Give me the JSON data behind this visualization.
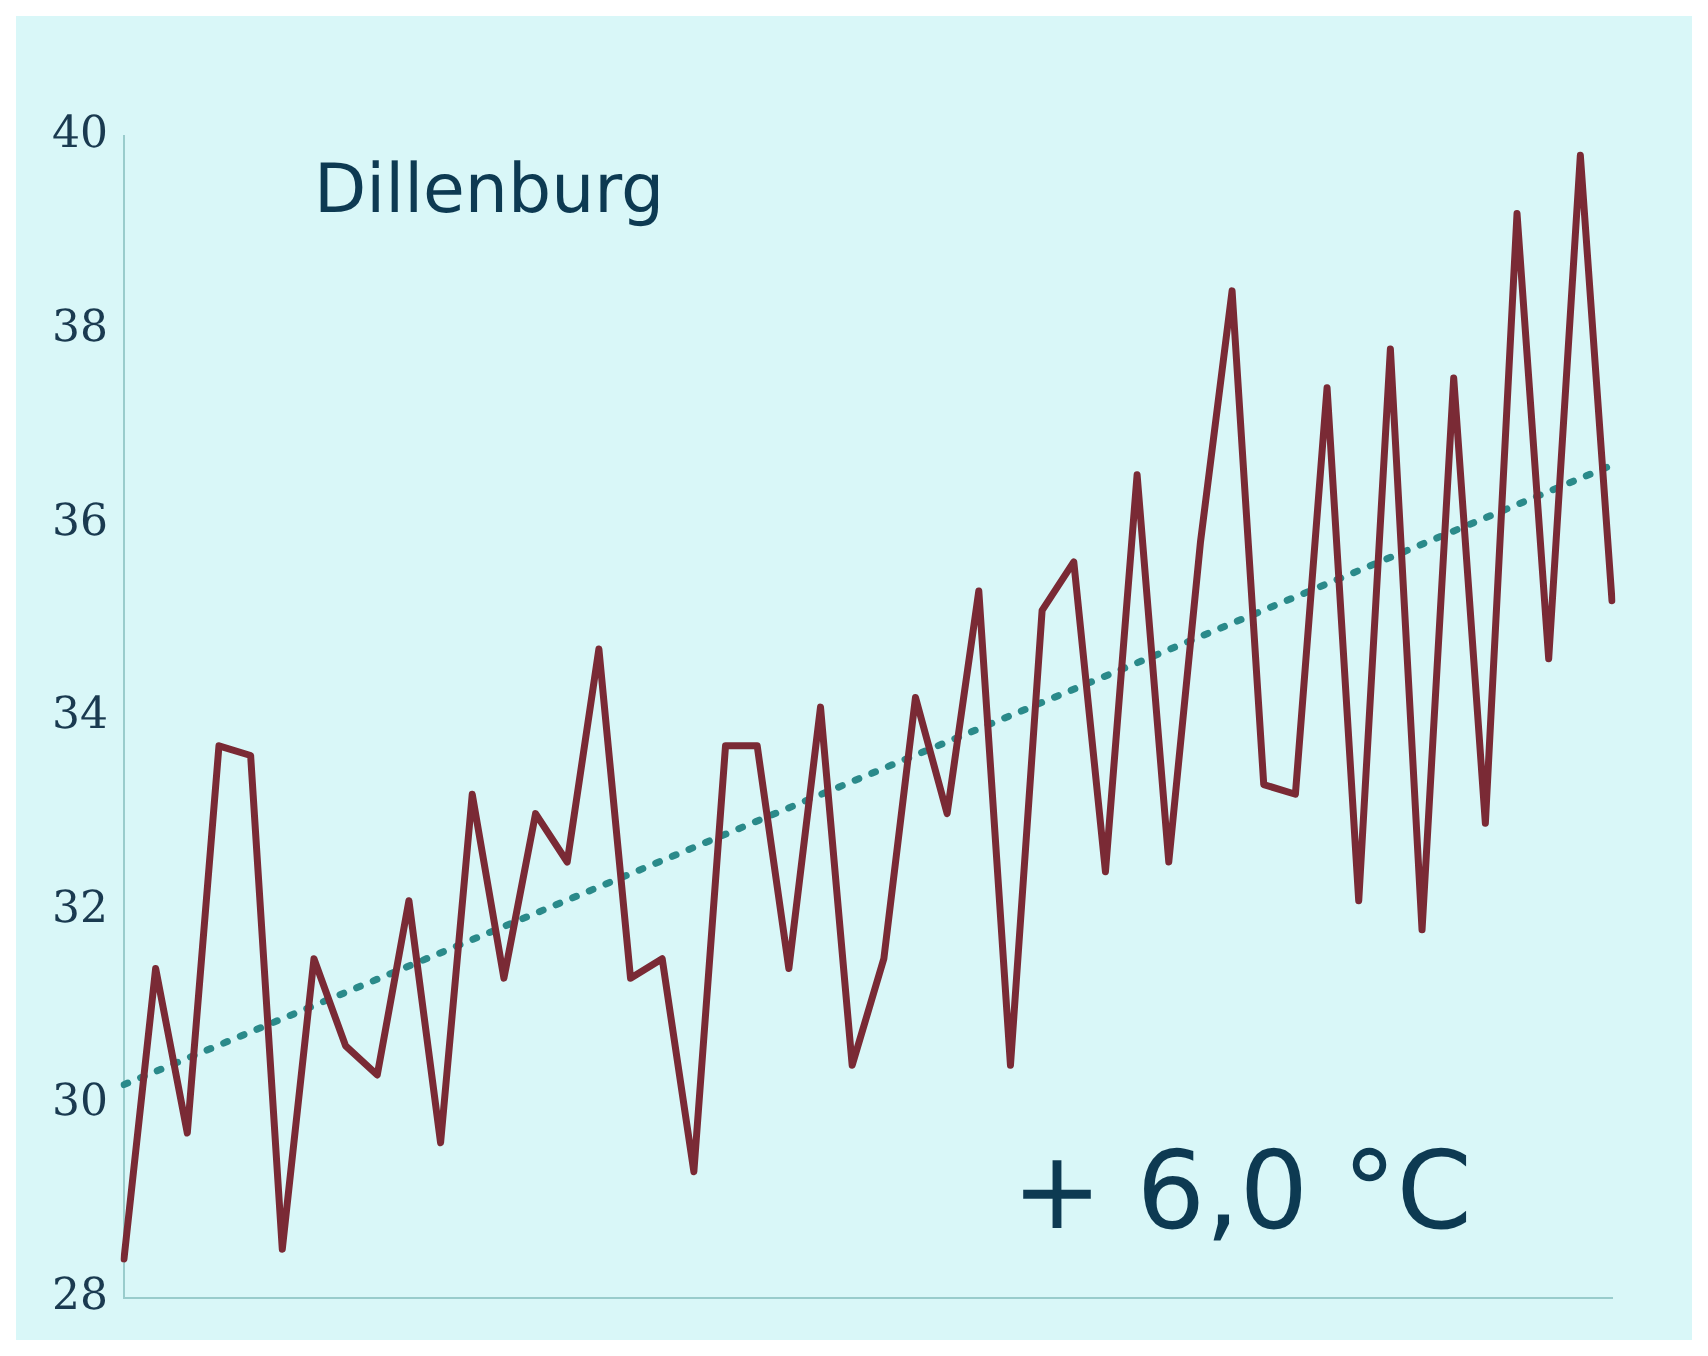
{
  "chart_data": {
    "type": "line",
    "title": "Dillenburg",
    "categories": [
      null,
      null,
      null,
      null,
      null,
      null,
      null,
      null,
      null,
      null,
      null,
      null,
      null,
      null,
      null,
      null,
      null,
      null,
      null,
      null,
      null,
      null,
      null,
      null,
      null,
      null,
      null,
      null,
      null,
      null,
      null,
      null,
      null,
      null,
      null,
      null,
      null,
      null,
      null,
      null,
      null,
      null,
      null,
      null,
      null,
      null,
      null,
      null
    ],
    "series": [
      {
        "color": "#7a2a35",
        "values": [
          28.4,
          31.4,
          29.7,
          33.7,
          33.6,
          28.5,
          31.5,
          30.6,
          30.3,
          32.1,
          29.6,
          33.2,
          31.3,
          33.0,
          32.5,
          34.7,
          31.3,
          31.5,
          29.3,
          33.7,
          33.7,
          31.4,
          34.1,
          30.4,
          31.5,
          34.2,
          33.0,
          35.3,
          30.4,
          35.1,
          35.6,
          32.4,
          36.5,
          32.5,
          35.8,
          38.4,
          33.3,
          33.2,
          37.4,
          32.1,
          37.8,
          31.8,
          37.5,
          32.9,
          39.2,
          34.6,
          39.8,
          35.2
        ]
      },
      {
        "type": "line",
        "color": "#2a8a8a",
        "line_style": "dotted",
        "values": [
          30.2,
          null,
          null,
          null,
          null,
          null,
          null,
          null,
          null,
          null,
          null,
          null,
          null,
          null,
          null,
          null,
          null,
          null,
          null,
          null,
          null,
          null,
          null,
          null,
          null,
          null,
          null,
          null,
          null,
          null,
          null,
          null,
          null,
          null,
          null,
          null,
          null,
          null,
          null,
          null,
          null,
          null,
          null,
          null,
          null,
          null,
          null,
          36.6
        ]
      }
    ],
    "ylim": [
      28,
      40
    ],
    "yticks": [
      28,
      30,
      32,
      34,
      36,
      38,
      40
    ],
    "grid": false,
    "legend": false,
    "marker": "none",
    "tick_labels": "y",
    "annotations": [
      "+ 6,0 °C"
    ]
  }
}
